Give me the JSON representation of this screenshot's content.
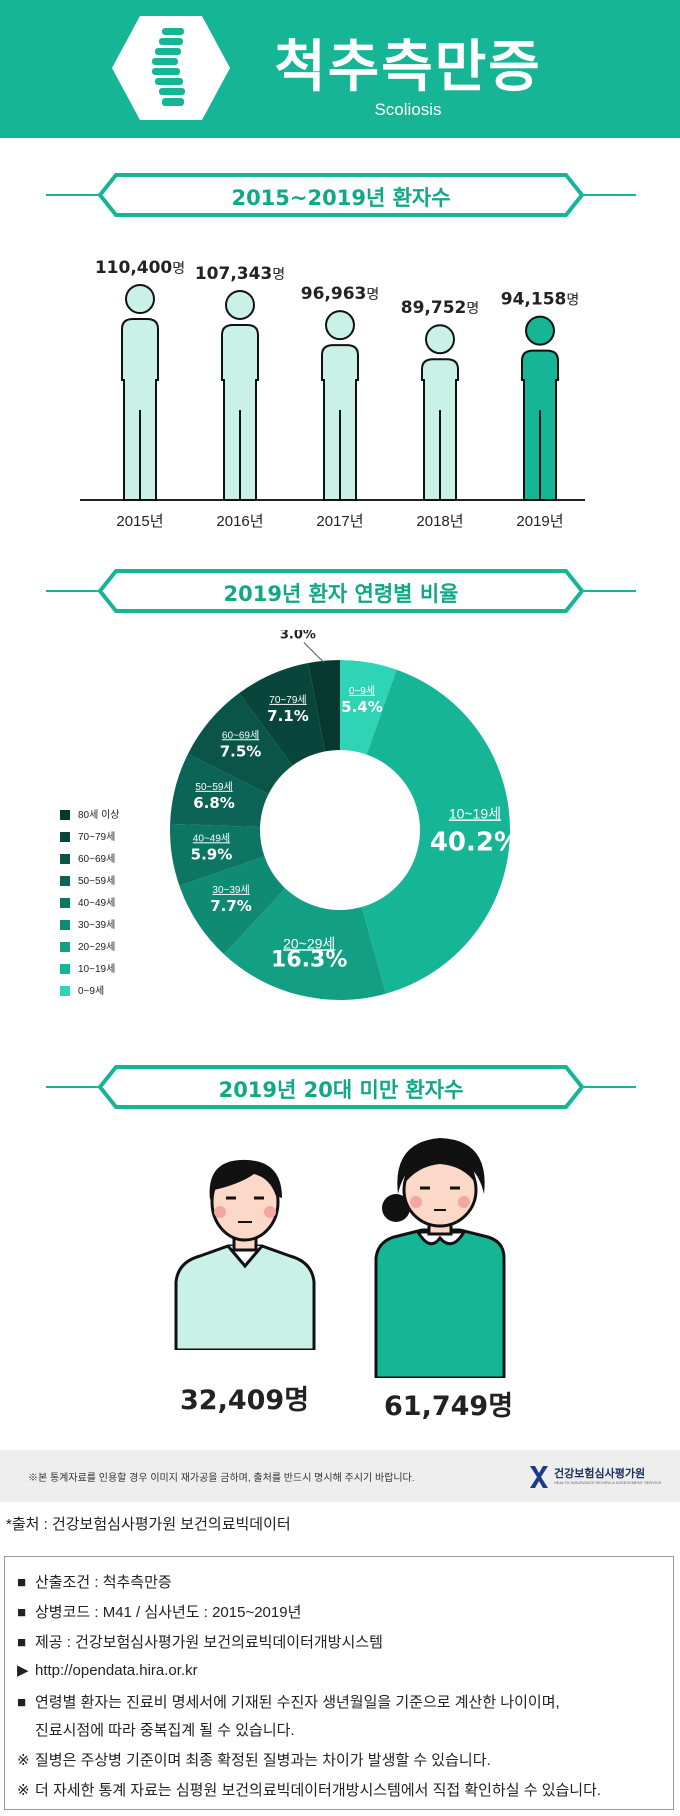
{
  "header": {
    "title": "척추측만증",
    "subtitle": "Scoliosis"
  },
  "sections": {
    "patients_by_year_title": "2015~2019년 환자수",
    "age_ratio_title": "2019년 환자 연령별 비율",
    "under20_title": "2019년 20대 미만 환자수"
  },
  "colors": {
    "brand": "#16b596",
    "light": "#c9f1e7",
    "dark": "#0e3b34"
  },
  "chart_data": [
    {
      "type": "bar",
      "categories": [
        "2015년",
        "2016년",
        "2017년",
        "2018년",
        "2019년"
      ],
      "values": [
        110400,
        107343,
        96963,
        89752,
        94158
      ],
      "value_labels": [
        "110,400",
        "107,343",
        "96,963",
        "89,752",
        "94,158"
      ],
      "unit": "명",
      "title": "2015~2019년 환자수"
    },
    {
      "type": "pie",
      "title": "2019년 환자 연령별 비율",
      "slices": [
        {
          "label": "0~9세",
          "value": 5.4,
          "display": "5.4%",
          "color": "#2fd3b5"
        },
        {
          "label": "10~19세",
          "value": 40.2,
          "display": "40.2%",
          "color": "#16b596"
        },
        {
          "label": "20~29세",
          "value": 16.3,
          "display": "16.3%",
          "color": "#129f84"
        },
        {
          "label": "30~39세",
          "value": 7.7,
          "display": "7.7%",
          "color": "#0f8a73"
        },
        {
          "label": "40~49세",
          "value": 5.9,
          "display": "5.9%",
          "color": "#0d7663"
        },
        {
          "label": "50~59세",
          "value": 6.8,
          "display": "6.8%",
          "color": "#0b6455"
        },
        {
          "label": "60~69세",
          "value": 7.5,
          "display": "7.5%",
          "color": "#0a5448"
        },
        {
          "label": "70~79세",
          "value": 7.1,
          "display": "7.1%",
          "color": "#08463c"
        },
        {
          "label": "80세 이상",
          "value": 3.0,
          "display": "3.0%",
          "color": "#063830"
        }
      ],
      "legend": [
        "80세 이상",
        "70~79세",
        "60~69세",
        "50~59세",
        "40~49세",
        "30~39세",
        "20~29세",
        "10~19세",
        "0~9세"
      ],
      "legend_position": "left"
    }
  ],
  "under20": {
    "male_count": "32,409명",
    "female_count": "61,749명"
  },
  "notice": {
    "text": "※본 통계자료를 인용할 경우 이미지 재가공을 금하며, 출처를 반드시 명시해 주시기 바랍니다.",
    "org_name": "건강보험심사평가원",
    "org_sub": "HEALTH INSURANCE REVIEW & ASSESSMENT SERVICE"
  },
  "source": "*출처 : 건강보험심사평가원 보건의료빅데이터",
  "info": [
    {
      "bullet": "■",
      "text": "산출조건 : 척추측만증"
    },
    {
      "bullet": "■",
      "text": "상병코드 : M41 / 심사년도 : 2015~2019년"
    },
    {
      "bullet": "■",
      "text": "제공 : 건강보험심사평가원 보건의료빅데이터개방시스템"
    },
    {
      "bullet": "▶",
      "text": "http://opendata.hira.or.kr"
    },
    {
      "bullet": "■",
      "text": "연령별 환자는 진료비 명세서에 기재된 수진자 생년월일을 기준으로 계산한 나이이며,"
    },
    {
      "bullet": "",
      "text": "진료시점에 따라 중복집계 될 수 있습니다."
    },
    {
      "bullet": "※",
      "text": "질병은 주상병 기준이며 최종 확정된 질병과는 차이가 발생할 수 있습니다."
    },
    {
      "bullet": "※",
      "text": "더 자세한 통계 자료는 심평원 보건의료빅데이터개방시스템에서 직접 확인하실 수 있습니다."
    }
  ]
}
